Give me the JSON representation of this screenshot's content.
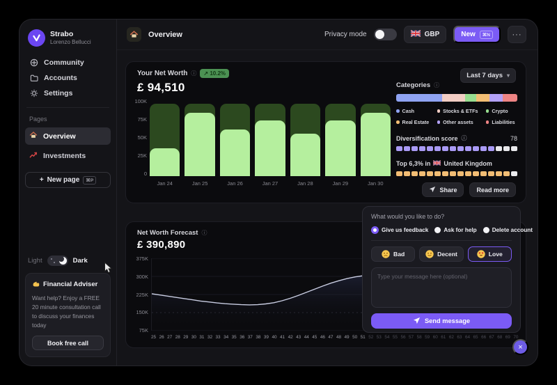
{
  "app": {
    "name": "Strabo",
    "user": "Lorenzo Bellucci"
  },
  "icons": {
    "info": "ⓘ",
    "chevron_down": "▾",
    "ellipsis": "···",
    "close": "×",
    "plus": "+"
  },
  "header": {
    "title": "Overview",
    "privacy_label": "Privacy mode",
    "currency": "GBP",
    "new_label": "New",
    "new_shortcut": "⌘N"
  },
  "sidebar": {
    "nav": [
      {
        "label": "Community"
      },
      {
        "label": "Accounts"
      },
      {
        "label": "Settings"
      }
    ],
    "pages_label": "Pages",
    "pages": [
      {
        "label": "Overview"
      },
      {
        "label": "Investments"
      }
    ],
    "new_page": {
      "label": "New page",
      "shortcut": "⌘P"
    },
    "theme": {
      "light_label": "Light",
      "dark_label": "Dark"
    },
    "adviser": {
      "title": "Financial Adviser",
      "body": "Want help? Enjoy a FREE 20 minute consultation call to discuss your finances today",
      "cta": "Book free call"
    }
  },
  "net_worth": {
    "title": "Your Net Worth",
    "change_badge": "↗ 10.2%",
    "value": "£ 94,510",
    "range_label": "Last 7 days"
  },
  "categories": {
    "title": "Categories",
    "items": [
      {
        "label": "Cash",
        "color": "#8fa3f2",
        "pct": 38
      },
      {
        "label": "Stocks & ETFs",
        "color": "#f2cdc4",
        "pct": 19
      },
      {
        "label": "Crypto",
        "color": "#97dd8f",
        "pct": 9
      },
      {
        "label": "Real Estate",
        "color": "#f2bd74",
        "pct": 11
      },
      {
        "label": "Other assets",
        "color": "#b3a1f7",
        "pct": 11
      },
      {
        "label": "Liabilities",
        "color": "#ee8484",
        "pct": 12
      }
    ]
  },
  "diversification": {
    "label": "Diversification score",
    "value": "78",
    "segments": 16,
    "filled": 13,
    "fill_color": "#a99af5",
    "empty_color": "#e9e9ec"
  },
  "top_rank": {
    "text_before": "Top 6,3% in",
    "country": "United Kingdom",
    "segments": 16,
    "filled": 15,
    "fill_color": "#f2bd74",
    "empty_color": "#e9e9ec"
  },
  "actions": {
    "share": "Share",
    "read_more": "Read more"
  },
  "forecast": {
    "title": "Net Worth Forecast",
    "value": "£ 390,890"
  },
  "feedback": {
    "question": "What would you like to do?",
    "options": [
      {
        "label": "Give us feedback",
        "selected": true
      },
      {
        "label": "Ask for help",
        "selected": false
      },
      {
        "label": "Delete account",
        "selected": false
      }
    ],
    "moods": [
      {
        "label": "Bad",
        "face": "bad",
        "selected": false
      },
      {
        "label": "Decent",
        "face": "decent",
        "selected": false
      },
      {
        "label": "Love",
        "face": "love",
        "selected": true
      }
    ],
    "placeholder": "Type your message here (optional)",
    "send_label": "Send message"
  },
  "chart_data": [
    {
      "type": "bar",
      "title": "Your Net Worth – Last 7 days",
      "categories": [
        "Jan 24",
        "Jan 25",
        "Jan 26",
        "Jan 27",
        "Jan 28",
        "Jan 29",
        "Jan 30"
      ],
      "series": [
        {
          "name": "Total",
          "color": "#2c491f",
          "values": [
            97,
            97,
            97,
            97,
            97,
            97,
            97
          ]
        },
        {
          "name": "Net worth",
          "color": "#b5ef9e",
          "values": [
            37,
            85,
            63,
            75,
            57,
            75,
            85
          ]
        }
      ],
      "ylim": [
        0,
        100
      ],
      "ytick_labels": [
        "100K",
        "75K",
        "50K",
        "25K",
        "0"
      ],
      "unit": "K GBP",
      "legend": false
    },
    {
      "type": "bar",
      "subtype": "horizontal-stacked",
      "title": "Categories breakdown",
      "categories": [
        "Cash",
        "Stocks & ETFs",
        "Crypto",
        "Real Estate",
        "Other assets",
        "Liabilities"
      ],
      "values": [
        38,
        19,
        9,
        11,
        11,
        12
      ],
      "unit": "%"
    },
    {
      "type": "area",
      "title": "Net Worth Forecast",
      "x": [
        25,
        26,
        27,
        28,
        29,
        30,
        31,
        32,
        33,
        34,
        35,
        36,
        37,
        38,
        39,
        40,
        41,
        42,
        43,
        44,
        45,
        46,
        47,
        48,
        49,
        50,
        51,
        52,
        53,
        54,
        55,
        56,
        57,
        58,
        59,
        60,
        61,
        62,
        63,
        64,
        65,
        66,
        67,
        68,
        69,
        70
      ],
      "y": [
        228,
        223,
        218,
        213,
        208,
        203,
        198,
        194,
        190,
        187,
        185,
        183,
        182,
        183,
        186,
        191,
        199,
        209,
        221,
        234,
        247,
        260,
        272,
        282,
        291,
        298,
        303,
        307,
        310,
        312,
        313,
        314,
        315,
        315,
        316,
        316,
        316,
        317,
        317,
        317,
        318,
        318,
        318,
        318,
        319,
        319
      ],
      "ylim": [
        75,
        375
      ],
      "ytick_labels": [
        "375K",
        "300K",
        "225K",
        "150K",
        "75K"
      ],
      "dim_x_after": 51,
      "line_color": "#c9cde2",
      "unit": "K GBP"
    }
  ]
}
